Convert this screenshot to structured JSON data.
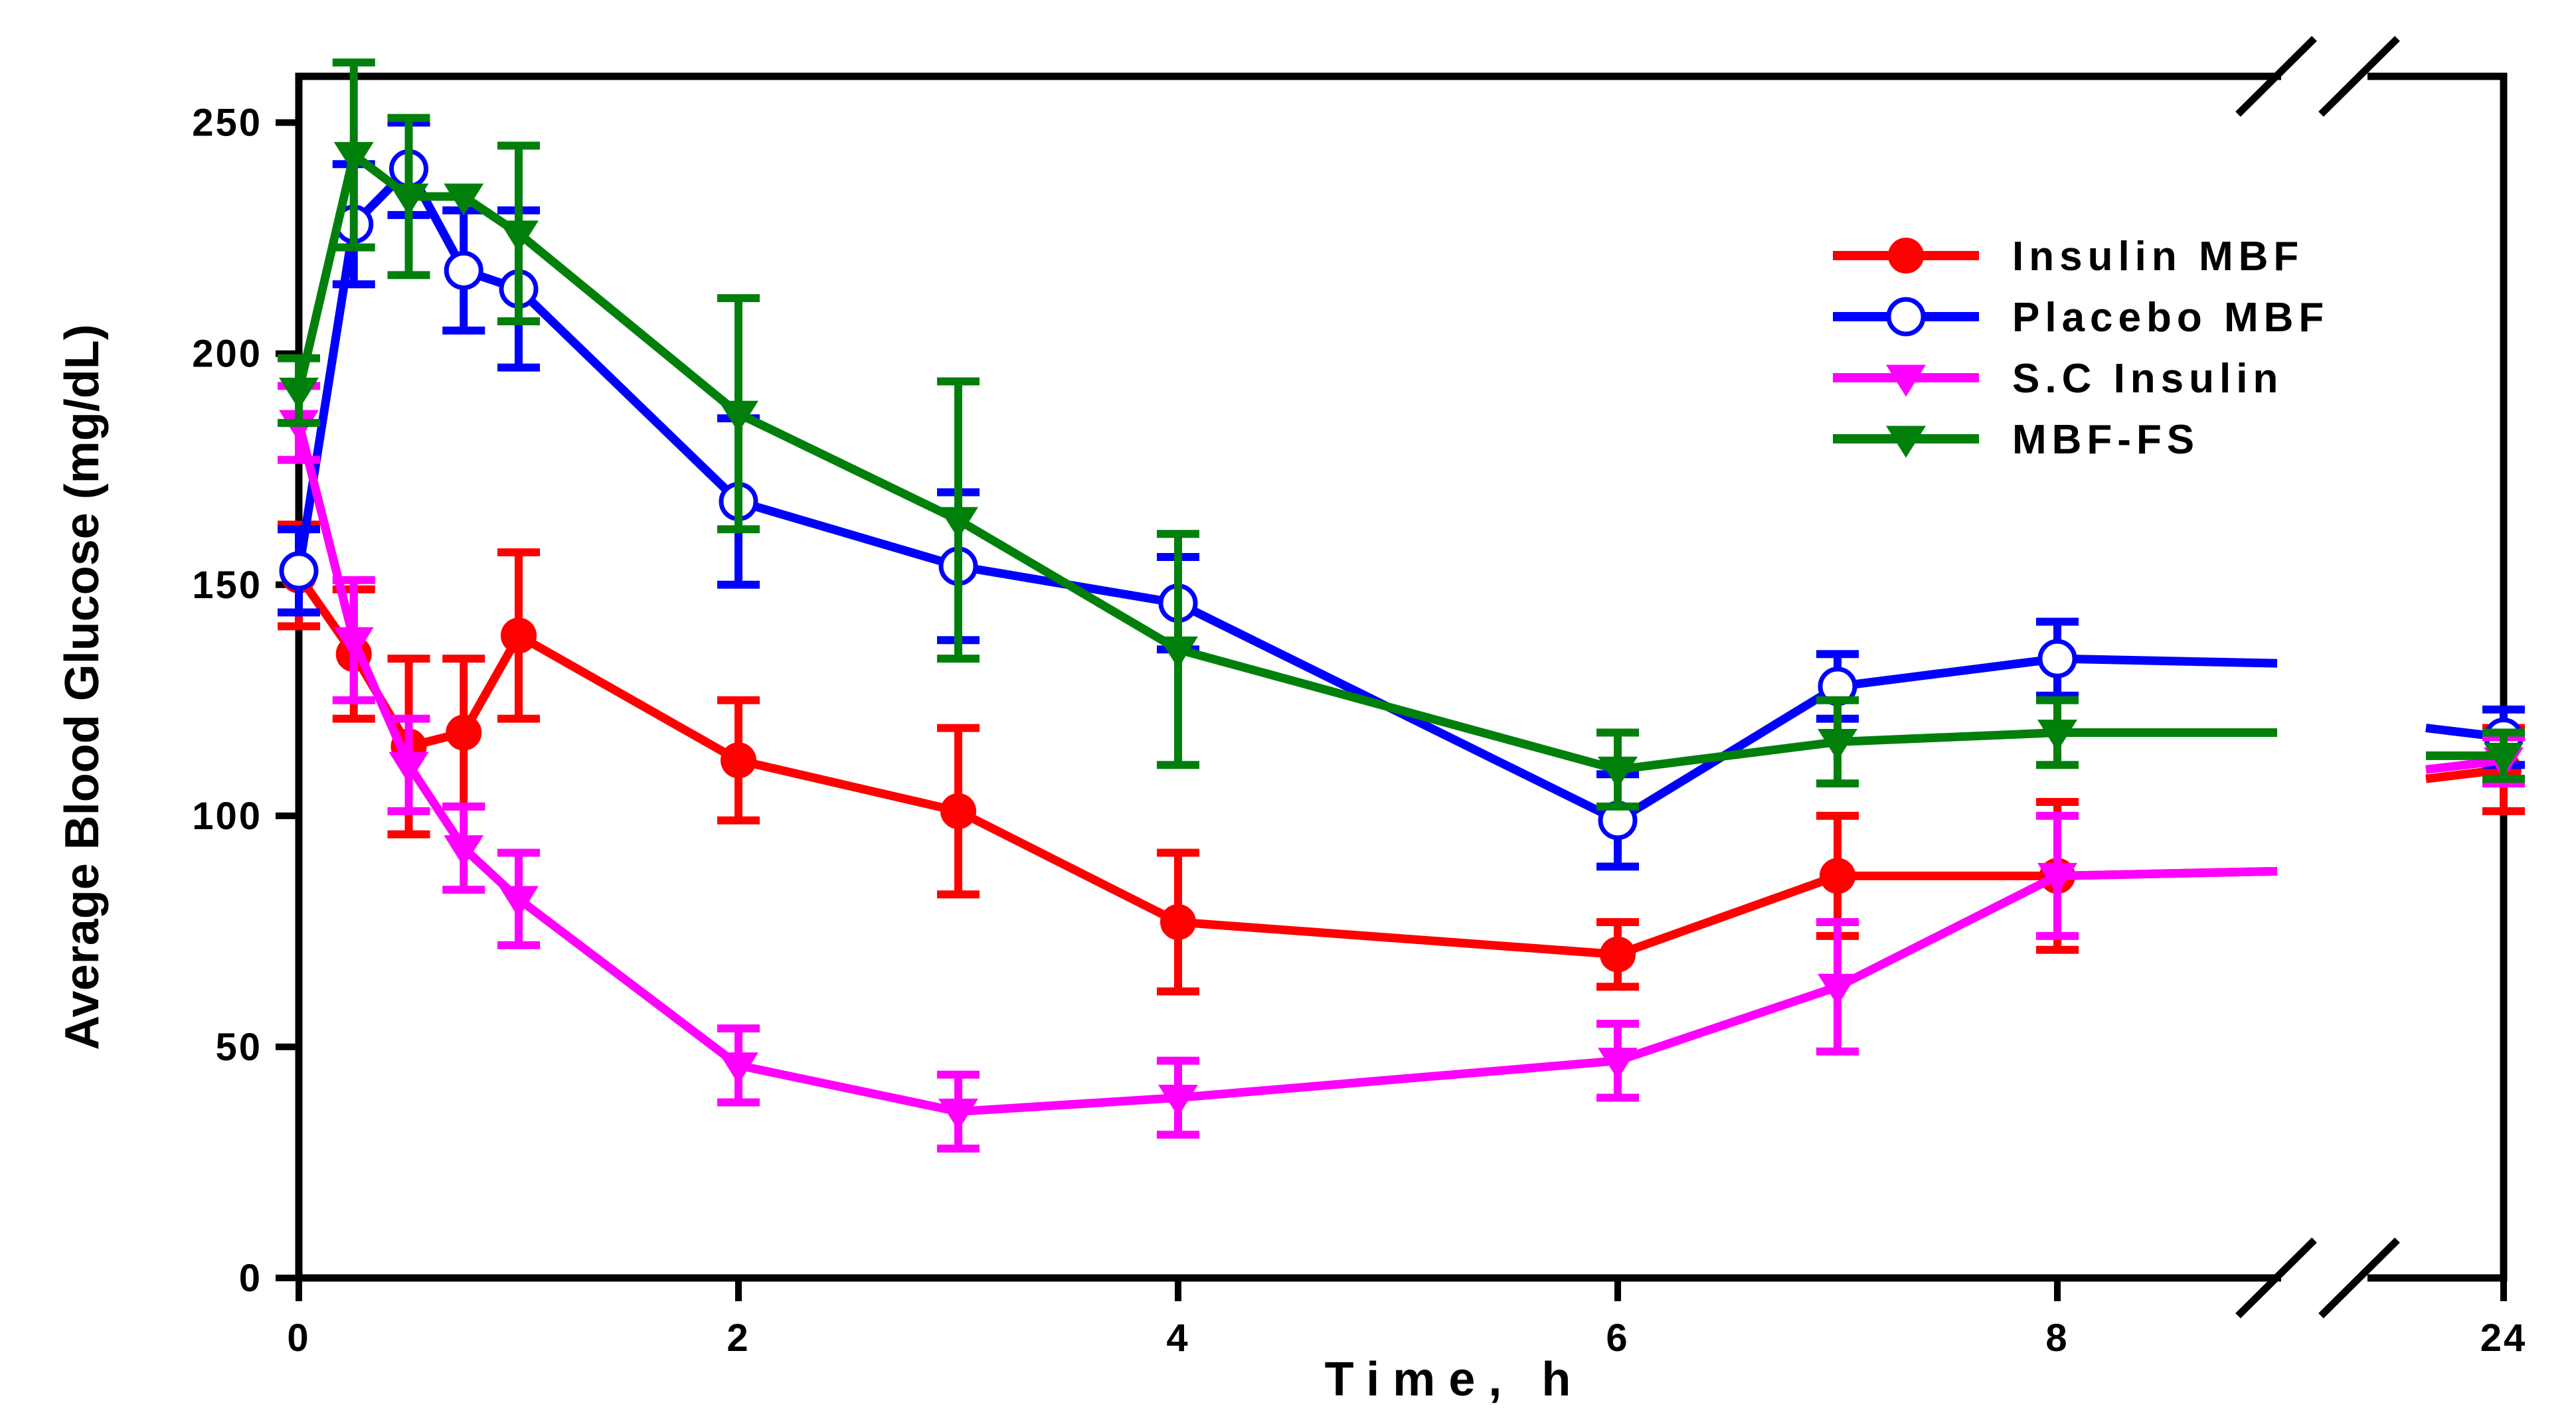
{
  "chart_data": {
    "type": "line",
    "title": "",
    "xlabel": "Time, h",
    "ylabel": "Average Blood Glucose (mg/dL)",
    "ylim": [
      0,
      260
    ],
    "yticks": [
      0,
      50,
      100,
      150,
      200,
      250
    ],
    "xticks": [
      0,
      2,
      4,
      6,
      8,
      24
    ],
    "x_axis_break": "between 9 and 23 h",
    "legend_position": "top-right",
    "series": [
      {
        "name": "Insulin MBF",
        "color": "#ff0000",
        "marker": "filled-circle",
        "x": [
          0,
          0.25,
          0.5,
          0.75,
          1,
          2,
          3,
          4,
          6,
          7,
          8,
          9,
          23.4,
          24
        ],
        "values": [
          152,
          135,
          115,
          118,
          139,
          112,
          101,
          77,
          70,
          87,
          87,
          88,
          108,
          110
        ],
        "errors": [
          11,
          14,
          19,
          16,
          18,
          13,
          18,
          15,
          7,
          13,
          16,
          null,
          null,
          9
        ]
      },
      {
        "name": "Placebo MBF",
        "color": "#0000ff",
        "marker": "open-circle",
        "x": [
          0,
          0.25,
          0.5,
          0.75,
          1,
          2,
          3,
          4,
          6,
          7,
          8,
          9,
          23.4,
          24
        ],
        "values": [
          153,
          228,
          240,
          218,
          214,
          168,
          154,
          146,
          99,
          128,
          134,
          133,
          119,
          117
        ],
        "errors": [
          9,
          13,
          10,
          13,
          17,
          18,
          16,
          10,
          10,
          7,
          8,
          null,
          null,
          6
        ]
      },
      {
        "name": "S.C Insulin",
        "color": "#ff00ff",
        "marker": "filled-triangle-down",
        "x": [
          0,
          0.25,
          0.5,
          0.75,
          1,
          2,
          3,
          4,
          6,
          7,
          8,
          9,
          23.4,
          24
        ],
        "values": [
          185,
          138,
          111,
          93,
          82,
          46,
          36,
          39,
          47,
          63,
          87,
          88,
          110,
          112
        ],
        "errors": [
          8,
          13,
          10,
          9,
          10,
          8,
          8,
          8,
          8,
          14,
          13,
          null,
          null,
          5
        ]
      },
      {
        "name": "MBF-FS",
        "color": "#00800a",
        "marker": "filled-triangle-down",
        "x": [
          0,
          0.25,
          0.5,
          0.75,
          1,
          2,
          3,
          4,
          6,
          7,
          8,
          9,
          23.4,
          24
        ],
        "values": [
          192,
          243,
          234,
          234,
          226,
          187,
          164,
          136,
          110,
          116,
          118,
          118,
          113,
          113
        ],
        "errors": [
          7,
          20,
          17,
          null,
          19,
          25,
          30,
          25,
          8,
          9,
          7,
          null,
          null,
          5
        ]
      }
    ]
  }
}
